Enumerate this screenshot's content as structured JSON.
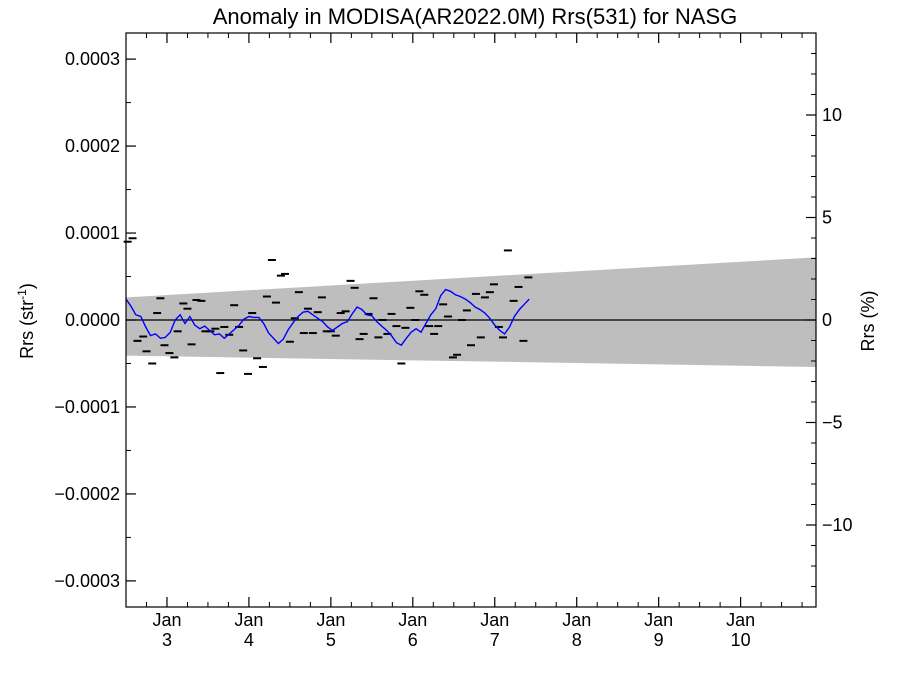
{
  "chart_data": {
    "type": "line",
    "title": "Anomaly in MODISA(AR2022.0M) Rrs(531) for NASG",
    "ylabel_left_main": "Rrs (str",
    "ylabel_left_sup": "-1",
    "ylabel_left_close": ")",
    "ylabel_right": "Rrs (%)",
    "xlim": [
      2.5,
      10.92
    ],
    "ylim_left": [
      -0.00033,
      0.00033
    ],
    "ylim_right": [
      -14,
      14
    ],
    "left_ticks": [
      {
        "value": 0.0003,
        "label": "0.0003"
      },
      {
        "value": 0.0002,
        "label": "0.0002"
      },
      {
        "value": 0.0001,
        "label": "0.0001"
      },
      {
        "value": 0.0,
        "label": "0.0000"
      },
      {
        "value": -0.0001,
        "label": "−0.0001"
      },
      {
        "value": -0.0002,
        "label": "−0.0002"
      },
      {
        "value": -0.0003,
        "label": "−0.0003"
      }
    ],
    "right_ticks": [
      {
        "value": 10,
        "label": "10"
      },
      {
        "value": 5,
        "label": "5"
      },
      {
        "value": 0,
        "label": "0"
      },
      {
        "value": -5,
        "label": "−5"
      },
      {
        "value": -10,
        "label": "−10"
      }
    ],
    "x_ticks": [
      {
        "value": 3,
        "month": "Jan",
        "year": "3"
      },
      {
        "value": 4,
        "month": "Jan",
        "year": "4"
      },
      {
        "value": 5,
        "month": "Jan",
        "year": "5"
      },
      {
        "value": 6,
        "month": "Jan",
        "year": "6"
      },
      {
        "value": 7,
        "month": "Jan",
        "year": "7"
      },
      {
        "value": 8,
        "month": "Jan",
        "year": "8"
      },
      {
        "value": 9,
        "month": "Jan",
        "year": "9"
      },
      {
        "value": 10,
        "month": "Jan",
        "year": "10"
      }
    ],
    "band": {
      "x": [
        2.5,
        10.92
      ],
      "upper": [
        2.6e-05,
        7.2e-05
      ],
      "lower": [
        -4.1e-05,
        -5.4e-05
      ]
    },
    "points": [
      {
        "x": 2.52,
        "y": 9e-05
      },
      {
        "x": 2.58,
        "y": 9.4e-05
      },
      {
        "x": 2.64,
        "y": -2.4e-05
      },
      {
        "x": 2.71,
        "y": -1.9e-05
      },
      {
        "x": 2.75,
        "y": -3.6e-05
      },
      {
        "x": 2.82,
        "y": -5e-05
      },
      {
        "x": 2.88,
        "y": 8e-06
      },
      {
        "x": 2.92,
        "y": 2.5e-05
      },
      {
        "x": 2.97,
        "y": -2.9e-05
      },
      {
        "x": 3.03,
        "y": -3.8e-05
      },
      {
        "x": 3.09,
        "y": -4.3e-05
      },
      {
        "x": 3.13,
        "y": -1.3e-05
      },
      {
        "x": 3.2,
        "y": 1.9e-05
      },
      {
        "x": 3.25,
        "y": 1.3e-05
      },
      {
        "x": 3.3,
        "y": -2.8e-05
      },
      {
        "x": 3.36,
        "y": 2.3e-05
      },
      {
        "x": 3.42,
        "y": 2.2e-05
      },
      {
        "x": 3.47,
        "y": -1.3e-05
      },
      {
        "x": 3.53,
        "y": -1.3e-05
      },
      {
        "x": 3.59,
        "y": -1e-05
      },
      {
        "x": 3.65,
        "y": -6.1e-05
      },
      {
        "x": 3.7,
        "y": -8e-06
      },
      {
        "x": 3.76,
        "y": -1.7e-05
      },
      {
        "x": 3.82,
        "y": 1.7e-05
      },
      {
        "x": 3.88,
        "y": -8e-06
      },
      {
        "x": 3.93,
        "y": -3.5e-05
      },
      {
        "x": 3.99,
        "y": -6.2e-05
      },
      {
        "x": 4.04,
        "y": 8e-06
      },
      {
        "x": 4.1,
        "y": -4.4e-05
      },
      {
        "x": 4.17,
        "y": -5.4e-05
      },
      {
        "x": 4.22,
        "y": 2.7e-05
      },
      {
        "x": 4.28,
        "y": 6.9e-05
      },
      {
        "x": 4.33,
        "y": 2e-05
      },
      {
        "x": 4.39,
        "y": 5.1e-05
      },
      {
        "x": 4.44,
        "y": 5.3e-05
      },
      {
        "x": 4.5,
        "y": -2.5e-05
      },
      {
        "x": 4.56,
        "y": 2e-06
      },
      {
        "x": 4.61,
        "y": 3.2e-05
      },
      {
        "x": 4.67,
        "y": -1.5e-05
      },
      {
        "x": 4.72,
        "y": 1.3e-05
      },
      {
        "x": 4.78,
        "y": -1.5e-05
      },
      {
        "x": 4.84,
        "y": 9e-06
      },
      {
        "x": 4.89,
        "y": 2.6e-05
      },
      {
        "x": 4.95,
        "y": -1.3e-05
      },
      {
        "x": 5.0,
        "y": -1.3e-05
      },
      {
        "x": 5.06,
        "y": -1.8e-05
      },
      {
        "x": 5.12,
        "y": 8e-06
      },
      {
        "x": 5.18,
        "y": 1e-05
      },
      {
        "x": 5.24,
        "y": 4.5e-05
      },
      {
        "x": 5.29,
        "y": 3.7e-05
      },
      {
        "x": 5.35,
        "y": -2.2e-05
      },
      {
        "x": 5.4,
        "y": -1.6e-05
      },
      {
        "x": 5.46,
        "y": 7e-06
      },
      {
        "x": 5.52,
        "y": 2.5e-05
      },
      {
        "x": 5.58,
        "y": -2e-05
      },
      {
        "x": 5.63,
        "y": 0.0
      },
      {
        "x": 5.69,
        "y": -1.6e-05
      },
      {
        "x": 5.74,
        "y": 7e-06
      },
      {
        "x": 5.8,
        "y": -7e-06
      },
      {
        "x": 5.86,
        "y": -5e-05
      },
      {
        "x": 5.91,
        "y": -9e-06
      },
      {
        "x": 5.97,
        "y": 1.4e-05
      },
      {
        "x": 6.03,
        "y": 0.0
      },
      {
        "x": 6.08,
        "y": 3.3e-05
      },
      {
        "x": 6.14,
        "y": 2.9e-05
      },
      {
        "x": 6.2,
        "y": -7e-06
      },
      {
        "x": 6.26,
        "y": -1.6e-05
      },
      {
        "x": 6.31,
        "y": -7e-06
      },
      {
        "x": 6.37,
        "y": 1.8e-05
      },
      {
        "x": 6.43,
        "y": 4e-06
      },
      {
        "x": 6.49,
        "y": -4.3e-05
      },
      {
        "x": 6.54,
        "y": -4e-05
      },
      {
        "x": 6.6,
        "y": 0.0
      },
      {
        "x": 6.66,
        "y": 1.1e-05
      },
      {
        "x": 6.71,
        "y": -2.9e-05
      },
      {
        "x": 6.77,
        "y": 3e-05
      },
      {
        "x": 6.83,
        "y": -2e-05
      },
      {
        "x": 6.88,
        "y": 2.6e-05
      },
      {
        "x": 6.94,
        "y": 3.2e-05
      },
      {
        "x": 6.99,
        "y": 4.1e-05
      },
      {
        "x": 7.05,
        "y": -8e-06
      },
      {
        "x": 7.1,
        "y": -2e-05
      },
      {
        "x": 7.16,
        "y": 8e-05
      },
      {
        "x": 7.23,
        "y": 2.2e-05
      },
      {
        "x": 7.29,
        "y": 3.8e-05
      },
      {
        "x": 7.35,
        "y": -2.4e-05
      },
      {
        "x": 7.41,
        "y": 4.9e-05
      }
    ],
    "series": [
      {
        "color": "#0000ff",
        "x": [
          2.5,
          2.56,
          2.62,
          2.68,
          2.74,
          2.8,
          2.86,
          2.92,
          2.98,
          3.04,
          3.1,
          3.16,
          3.22,
          3.28,
          3.34,
          3.4,
          3.46,
          3.52,
          3.58,
          3.64,
          3.7,
          3.76,
          3.82,
          3.88,
          3.94,
          4.0,
          4.06,
          4.12,
          4.18,
          4.24,
          4.3,
          4.36,
          4.42,
          4.48,
          4.54,
          4.6,
          4.66,
          4.72,
          4.78,
          4.84,
          4.9,
          4.96,
          5.02,
          5.08,
          5.14,
          5.2,
          5.26,
          5.32,
          5.38,
          5.44,
          5.5,
          5.56,
          5.62,
          5.68,
          5.74,
          5.8,
          5.86,
          5.92,
          5.98,
          6.04,
          6.1,
          6.16,
          6.22,
          6.28,
          6.34,
          6.4,
          6.46,
          6.52,
          6.58,
          6.64,
          6.7,
          6.76,
          6.82,
          6.88,
          6.94,
          7.0,
          7.06,
          7.12,
          7.18,
          7.24,
          7.3,
          7.36,
          7.42
        ],
        "values": [
          2.4e-05,
          1.6e-05,
          6e-06,
          4e-06,
          -8e-06,
          -1.8e-05,
          -1.6e-05,
          -2.1e-05,
          -2e-05,
          -1.4e-05,
          0.0,
          6e-06,
          -4e-06,
          4e-06,
          -6e-06,
          -1e-05,
          -7e-06,
          -1.2e-05,
          -1.7e-05,
          -1.6e-05,
          -2.1e-05,
          -1.6e-05,
          -1.1e-05,
          -6e-06,
          1e-06,
          4e-06,
          3e-06,
          3e-06,
          -4e-06,
          -1.5e-05,
          -2.1e-05,
          -2.7e-05,
          -2.2e-05,
          -1.1e-05,
          -3e-06,
          4e-06,
          9e-06,
          1e-05,
          6e-06,
          2e-06,
          -2e-06,
          -8e-06,
          -1.2e-05,
          -8e-06,
          -4e-06,
          -2e-06,
          7e-06,
          1.5e-05,
          1.2e-05,
          6e-06,
          5e-06,
          -2e-06,
          -7e-06,
          -1.2e-05,
          -1.8e-05,
          -2.6e-05,
          -2.9e-05,
          -2.1e-05,
          -1.4e-05,
          -1e-05,
          -1.4e-05,
          -4e-06,
          6e-06,
          1.3e-05,
          2.8e-05,
          3.5e-05,
          3.3e-05,
          2.9e-05,
          2.7e-05,
          2.4e-05,
          2e-05,
          1.5e-05,
          1.2e-05,
          8e-06,
          2e-06,
          -6e-06,
          -1.2e-05,
          -1.6e-05,
          -8e-06,
          4e-06,
          1.2e-05,
          1.8e-05,
          2.4e-05
        ]
      }
    ]
  }
}
